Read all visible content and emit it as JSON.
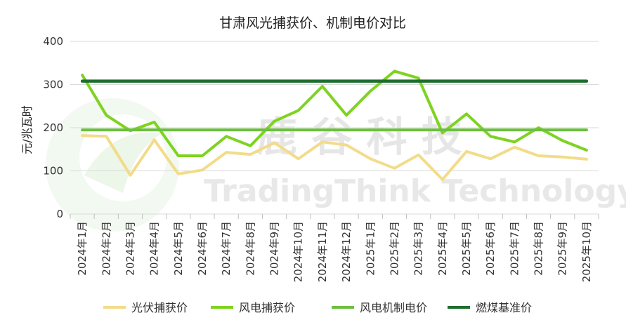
{
  "chart_data": {
    "type": "line",
    "title": "甘肃风光捕获价、机制电价对比",
    "ylabel": "元/兆瓦时",
    "xlabel": "",
    "ylim": [
      0,
      400
    ],
    "yticks": [
      "0",
      "100",
      "200",
      "300",
      "400"
    ],
    "categories": [
      "2024年1月",
      "2024年2月",
      "2024年3月",
      "2024年4月",
      "2024年5月",
      "2024年6月",
      "2024年7月",
      "2024年8月",
      "2024年9月",
      "2024年10月",
      "2024年11月",
      "2024年12月",
      "2025年1月",
      "2025年2月",
      "2025年3月",
      "2025年4月",
      "2025年5月",
      "2025年6月",
      "2025年7月",
      "2025年8月",
      "2025年9月",
      "2025年10月"
    ],
    "series": [
      {
        "name": "光伏捕获价",
        "color": "#f2dc8a",
        "values": [
          182,
          180,
          90,
          172,
          93,
          102,
          143,
          138,
          165,
          128,
          167,
          160,
          128,
          106,
          137,
          80,
          145,
          128,
          155,
          135,
          132,
          127
        ]
      },
      {
        "name": "风电捕获价",
        "color": "#7ed321",
        "values": [
          322,
          229,
          193,
          213,
          135,
          135,
          180,
          158,
          215,
          240,
          296,
          229,
          285,
          331,
          315,
          188,
          232,
          180,
          167,
          200,
          170,
          148
        ]
      },
      {
        "name": "风电机制电价",
        "color": "#6cbf3f",
        "values": [
          195,
          195,
          195,
          195,
          195,
          195,
          195,
          195,
          195,
          195,
          195,
          195,
          195,
          195,
          195,
          195,
          195,
          195,
          195,
          195,
          195,
          195
        ]
      },
      {
        "name": "燃煤基准价",
        "color": "#1f6e2f",
        "values": [
          308,
          308,
          308,
          308,
          308,
          308,
          308,
          308,
          308,
          308,
          308,
          308,
          308,
          308,
          308,
          308,
          308,
          308,
          308,
          308,
          308,
          308
        ]
      }
    ],
    "grid": true,
    "legend_position": "bottom"
  },
  "watermark": {
    "cn": "鹿 谷 科 技",
    "en": "TradingThink Technology"
  }
}
